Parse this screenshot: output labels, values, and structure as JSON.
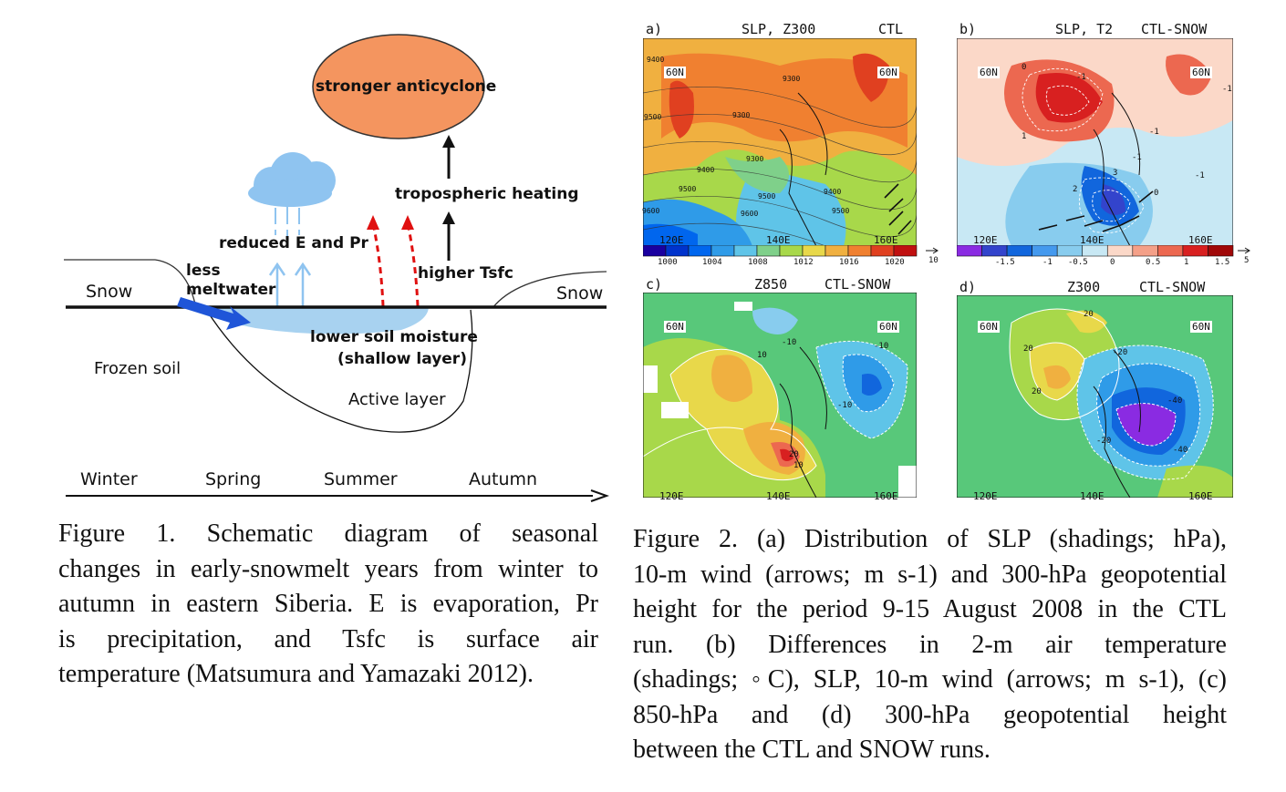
{
  "figure1": {
    "labels": {
      "anticyclone": "stronger anticyclone",
      "tropo_heating": "tropospheric heating",
      "reduced_e_pr": "reduced E and Pr",
      "higher_tsfc": "higher Tsfc",
      "less": "less",
      "meltwater": "meltwater",
      "snow_left": "Snow",
      "snow_right": "Snow",
      "lower_soil": "lower soil moisture",
      "shallow_layer": "(shallow layer)",
      "frozen_soil": "Frozen soil",
      "active_layer": "Active layer"
    },
    "seasons": [
      "Winter",
      "Spring",
      "Summer",
      "Autumn"
    ],
    "caption_lines": [
      "Figure 1. Schematic diagram of seasonal",
      "changes in early-snowmelt years from winter to",
      "autumn in eastern Siberia. E is evaporation, Pr",
      "is precipitation, and Tsfc is surface air",
      "temperature (Matsumura and Yamazaki 2012)."
    ]
  },
  "figure2": {
    "panels": [
      {
        "letter": "a)",
        "title": "SLP, Z300",
        "run": "CTL"
      },
      {
        "letter": "b)",
        "title": "SLP, T2",
        "run": "CTL-SNOW"
      },
      {
        "letter": "c)",
        "title": "Z850",
        "run": "CTL-SNOW"
      },
      {
        "letter": "d)",
        "title": "Z300",
        "run": "CTL-SNOW"
      }
    ],
    "lat_label": "60N",
    "lon_ticks": [
      "120E",
      "140E",
      "160E"
    ],
    "colorbar_a": {
      "labels": [
        "1000",
        "1004",
        "1008",
        "1012",
        "1016",
        "1020"
      ],
      "arrow_label": "10",
      "colors": [
        "#1a00a0",
        "#0033cc",
        "#0066ee",
        "#2f9be8",
        "#5fc4e8",
        "#7fd08a",
        "#a8d84a",
        "#e8d84a",
        "#f0b040",
        "#f08030",
        "#e04020",
        "#c01010"
      ]
    },
    "colorbar_b": {
      "labels": [
        "-1.5",
        "-1",
        "-0.5",
        "0",
        "0.5",
        "1",
        "1.5"
      ],
      "arrow_label": "5",
      "colors": [
        "#8a2be2",
        "#3344cc",
        "#1166dd",
        "#4499ee",
        "#88ccee",
        "#c8e8f4",
        "#fbd8c8",
        "#f4a088",
        "#ec6850",
        "#d82020",
        "#a00808"
      ]
    },
    "contours_a": [
      "9400",
      "9300",
      "9500",
      "9300",
      "9400",
      "9500",
      "9600",
      "9300",
      "9400",
      "9500",
      "9500",
      "9600"
    ],
    "contours_b": [
      "-1",
      "-1",
      "-1",
      "2",
      "3",
      "0",
      "-1",
      "0",
      "1",
      "-1"
    ],
    "contours_c": [
      "-10",
      "10",
      "-10",
      "20",
      "-10",
      "10"
    ],
    "contours_d": [
      "20",
      "20",
      "20",
      "-20",
      "-40",
      "-20",
      "-40"
    ],
    "caption_lines": [
      "Figure 2. (a) Distribution of SLP (shadings; hPa),",
      "10-m wind (arrows; m s-1) and 300-hPa geopotential",
      "height for the period 9-15 August 2008 in the CTL",
      "run. (b) Differences in 2-m air temperature",
      "(shadings; ◦C), SLP, 10-m wind (arrows; m s-1), (c)",
      "850-hPa and (d) 300-hPa geopotential height",
      "between the CTL and SNOW runs."
    ]
  }
}
